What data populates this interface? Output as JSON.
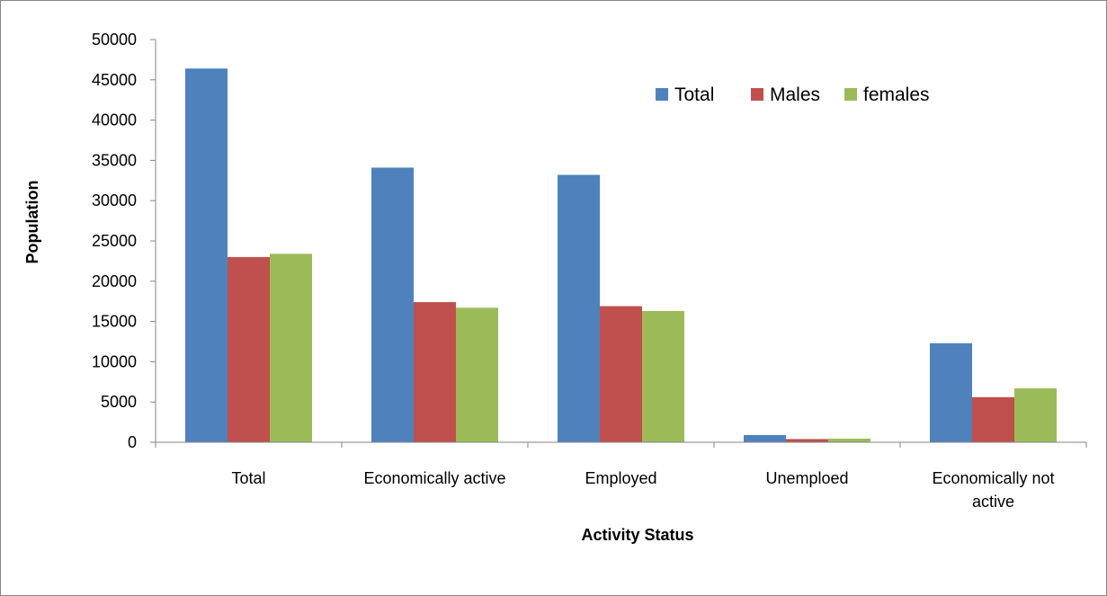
{
  "chart_data": {
    "type": "bar",
    "title": "",
    "xlabel": "Activity Status",
    "ylabel": "Population",
    "ylim": [
      0,
      50000
    ],
    "y_ticks": [
      0,
      5000,
      10000,
      15000,
      20000,
      25000,
      30000,
      35000,
      40000,
      45000,
      50000
    ],
    "categories": [
      [
        "Total"
      ],
      [
        "Economically active"
      ],
      [
        "Employed"
      ],
      [
        "Unemploed"
      ],
      [
        "Economically not",
        "active"
      ]
    ],
    "series": [
      {
        "name": "Total",
        "color": "#4F81BD",
        "values": [
          46400,
          34100,
          33200,
          900,
          12300
        ]
      },
      {
        "name": "Males",
        "color": "#C0504D",
        "values": [
          23000,
          17400,
          16900,
          400,
          5600
        ]
      },
      {
        "name": "females",
        "color": "#9BBB59",
        "values": [
          23400,
          16700,
          16300,
          450,
          6700
        ]
      }
    ],
    "grid": false,
    "legend_position": "top-right"
  }
}
